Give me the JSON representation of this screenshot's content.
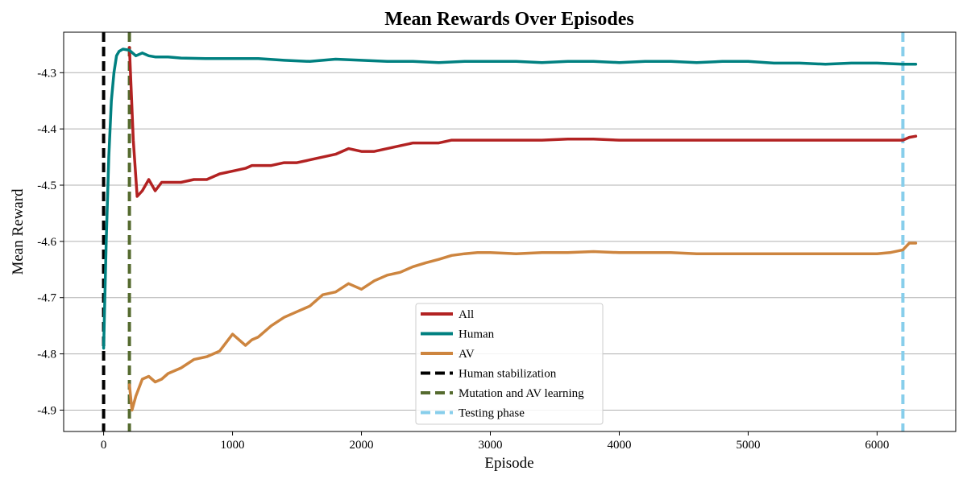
{
  "chart_data": {
    "type": "line",
    "title": "Mean Rewards Over Episodes",
    "xlabel": "Episode",
    "ylabel": "Mean Reward",
    "xlim": [
      -310,
      6610
    ],
    "ylim": [
      -4.938,
      -4.228
    ],
    "xticks": [
      0,
      1000,
      2000,
      3000,
      4000,
      5000,
      6000
    ],
    "xtick_labels": [
      "0",
      "1000",
      "2000",
      "3000",
      "4000",
      "5000",
      "6000"
    ],
    "yticks": [
      -4.3,
      -4.4,
      -4.5,
      -4.6,
      -4.7,
      -4.8,
      -4.9
    ],
    "ytick_labels": [
      "-4.3",
      "-4.4",
      "-4.5",
      "-4.6",
      "-4.7",
      "-4.8",
      "-4.9"
    ],
    "grid": "horizontal",
    "legend_position": "bottom-center",
    "series": [
      {
        "name": "All",
        "color": "#b22222",
        "x": [
          200,
          230,
          260,
          300,
          350,
          400,
          450,
          500,
          600,
          700,
          800,
          900,
          1000,
          1100,
          1150,
          1200,
          1300,
          1400,
          1500,
          1600,
          1700,
          1800,
          1900,
          2000,
          2100,
          2200,
          2300,
          2400,
          2500,
          2600,
          2700,
          2800,
          2900,
          3000,
          3200,
          3400,
          3600,
          3800,
          4000,
          4200,
          4400,
          4600,
          4800,
          5000,
          5200,
          5400,
          5600,
          5800,
          6000,
          6200,
          6250,
          6300
        ],
        "values": [
          -4.255,
          -4.42,
          -4.52,
          -4.51,
          -4.49,
          -4.51,
          -4.495,
          -4.495,
          -4.495,
          -4.49,
          -4.49,
          -4.48,
          -4.475,
          -4.47,
          -4.465,
          -4.465,
          -4.465,
          -4.46,
          -4.46,
          -4.455,
          -4.45,
          -4.445,
          -4.435,
          -4.44,
          -4.44,
          -4.435,
          -4.43,
          -4.425,
          -4.425,
          -4.425,
          -4.42,
          -4.42,
          -4.42,
          -4.42,
          -4.42,
          -4.42,
          -4.418,
          -4.418,
          -4.42,
          -4.42,
          -4.42,
          -4.42,
          -4.42,
          -4.42,
          -4.42,
          -4.42,
          -4.42,
          -4.42,
          -4.42,
          -4.42,
          -4.415,
          -4.413
        ]
      },
      {
        "name": "Human",
        "color": "#008080",
        "x": [
          0,
          20,
          40,
          60,
          80,
          100,
          120,
          150,
          200,
          250,
          300,
          350,
          400,
          500,
          600,
          800,
          1000,
          1200,
          1400,
          1600,
          1800,
          2000,
          2200,
          2400,
          2600,
          2800,
          3000,
          3200,
          3400,
          3600,
          3800,
          4000,
          4200,
          4400,
          4600,
          4800,
          5000,
          5200,
          5400,
          5600,
          5800,
          6000,
          6200,
          6300
        ],
        "values": [
          -4.79,
          -4.6,
          -4.45,
          -4.35,
          -4.3,
          -4.27,
          -4.262,
          -4.258,
          -4.26,
          -4.27,
          -4.265,
          -4.27,
          -4.272,
          -4.272,
          -4.274,
          -4.275,
          -4.275,
          -4.275,
          -4.278,
          -4.28,
          -4.276,
          -4.278,
          -4.28,
          -4.28,
          -4.282,
          -4.28,
          -4.28,
          -4.28,
          -4.282,
          -4.28,
          -4.28,
          -4.282,
          -4.28,
          -4.28,
          -4.282,
          -4.28,
          -4.28,
          -4.283,
          -4.283,
          -4.285,
          -4.283,
          -4.283,
          -4.285,
          -4.285
        ]
      },
      {
        "name": "AV",
        "color": "#cd853f",
        "x": [
          200,
          220,
          250,
          300,
          350,
          400,
          450,
          500,
          600,
          700,
          800,
          900,
          1000,
          1100,
          1150,
          1200,
          1300,
          1400,
          1500,
          1600,
          1700,
          1800,
          1900,
          2000,
          2100,
          2200,
          2300,
          2400,
          2500,
          2600,
          2700,
          2800,
          2900,
          3000,
          3200,
          3400,
          3600,
          3800,
          4000,
          4200,
          4400,
          4600,
          4800,
          5000,
          5200,
          5400,
          5600,
          5800,
          6000,
          6100,
          6200,
          6250,
          6300
        ],
        "values": [
          -4.855,
          -4.9,
          -4.875,
          -4.845,
          -4.84,
          -4.85,
          -4.845,
          -4.835,
          -4.825,
          -4.81,
          -4.805,
          -4.795,
          -4.765,
          -4.785,
          -4.775,
          -4.77,
          -4.75,
          -4.735,
          -4.725,
          -4.715,
          -4.695,
          -4.69,
          -4.675,
          -4.685,
          -4.67,
          -4.66,
          -4.655,
          -4.645,
          -4.638,
          -4.632,
          -4.625,
          -4.622,
          -4.62,
          -4.62,
          -4.622,
          -4.62,
          -4.62,
          -4.618,
          -4.62,
          -4.62,
          -4.62,
          -4.622,
          -4.622,
          -4.622,
          -4.622,
          -4.622,
          -4.622,
          -4.622,
          -4.622,
          -4.62,
          -4.615,
          -4.603,
          -4.603
        ]
      },
      {
        "name": "Human stabilization",
        "color": "#000000",
        "dashed": true,
        "vertical_x": 0
      },
      {
        "name": "Mutation and AV learning",
        "color": "#556b2f",
        "dashed": true,
        "vertical_x": 200
      },
      {
        "name": "Testing phase",
        "color": "#87ceeb",
        "dashed": true,
        "vertical_x": 6200
      }
    ]
  }
}
